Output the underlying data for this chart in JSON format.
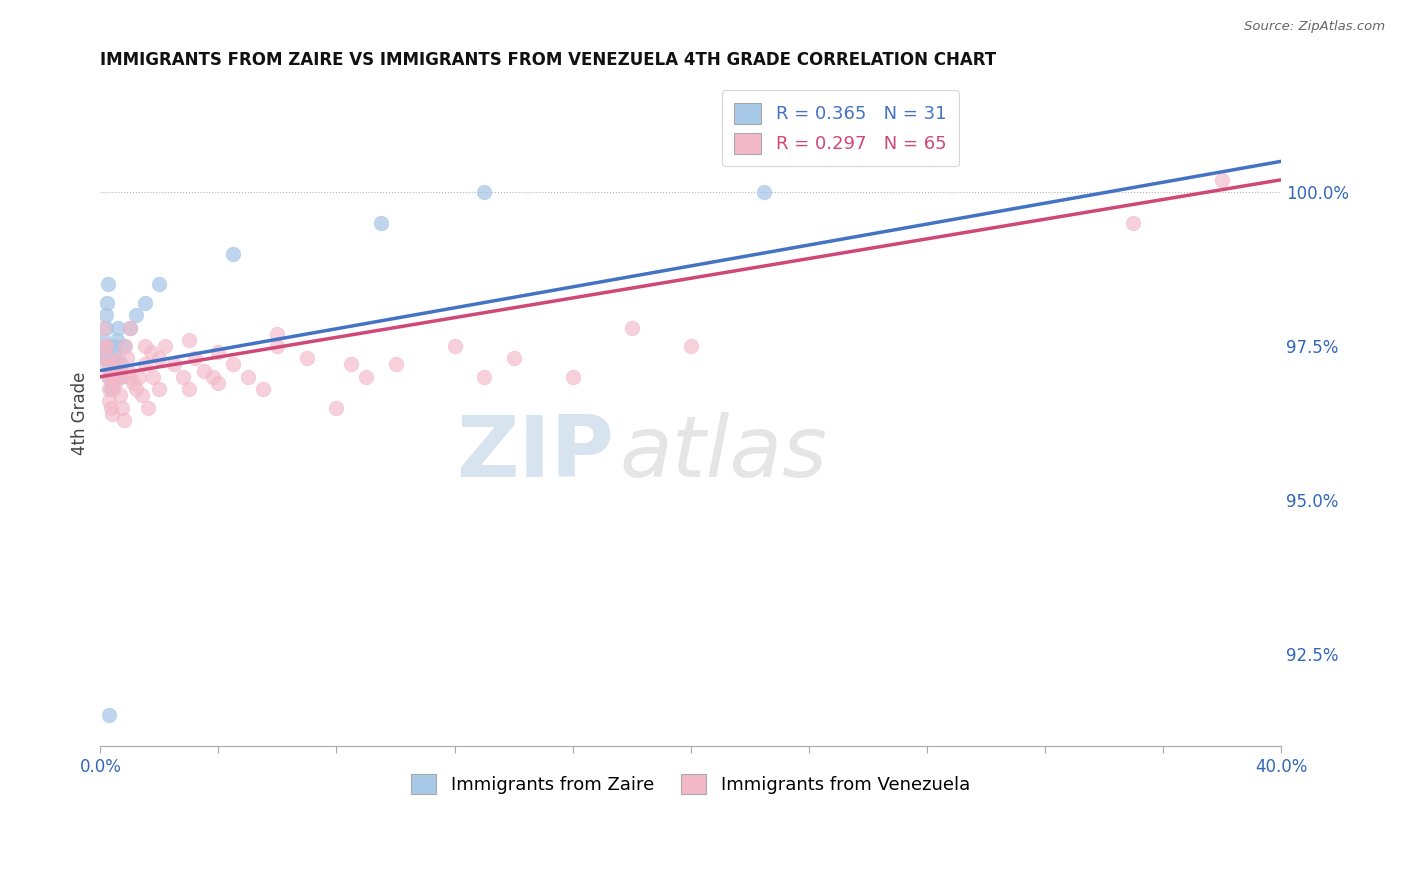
{
  "title": "IMMIGRANTS FROM ZAIRE VS IMMIGRANTS FROM VENEZUELA 4TH GRADE CORRELATION CHART",
  "source": "Source: ZipAtlas.com",
  "ylabel": "4th Grade",
  "xlim": [
    0.0,
    40.0
  ],
  "ylim": [
    91.0,
    101.8
  ],
  "yticks": [
    92.5,
    95.0,
    97.5,
    100.0
  ],
  "ytick_labels": [
    "92.5%",
    "95.0%",
    "97.5%",
    "100.0%"
  ],
  "zaire_color": "#a8c8e8",
  "venezuela_color": "#f2b8c8",
  "zaire_line_color": "#4472c4",
  "venezuela_line_color": "#d04878",
  "legend_zaire_label": "R = 0.365",
  "legend_zaire_n": "N = 31",
  "legend_venezuela_label": "R = 0.297",
  "legend_venezuela_n": "N = 65",
  "legend_bottom_zaire": "Immigrants from Zaire",
  "legend_bottom_venezuela": "Immigrants from Venezuela",
  "watermark_zip": "ZIP",
  "watermark_atlas": "atlas",
  "zaire_x": [
    0.08,
    0.1,
    0.12,
    0.15,
    0.18,
    0.2,
    0.22,
    0.25,
    0.28,
    0.3,
    0.35,
    0.38,
    0.4,
    0.42,
    0.45,
    0.48,
    0.5,
    0.55,
    0.6,
    0.65,
    0.7,
    0.8,
    1.0,
    1.2,
    1.5,
    2.0,
    4.5,
    9.5,
    13.0,
    22.5,
    0.3
  ],
  "zaire_y": [
    97.4,
    97.6,
    97.3,
    97.5,
    97.8,
    98.0,
    98.2,
    98.5,
    97.2,
    97.0,
    96.8,
    97.1,
    96.9,
    97.3,
    97.5,
    97.2,
    97.4,
    97.6,
    97.8,
    97.0,
    97.2,
    97.5,
    97.8,
    98.0,
    98.2,
    98.5,
    99.0,
    99.5,
    100.0,
    100.0,
    91.5
  ],
  "venezuela_x": [
    0.1,
    0.15,
    0.18,
    0.2,
    0.22,
    0.25,
    0.28,
    0.3,
    0.35,
    0.38,
    0.4,
    0.42,
    0.45,
    0.48,
    0.5,
    0.55,
    0.6,
    0.65,
    0.7,
    0.75,
    0.8,
    0.85,
    0.9,
    0.95,
    1.0,
    1.1,
    1.2,
    1.3,
    1.4,
    1.5,
    1.6,
    1.7,
    1.8,
    2.0,
    2.2,
    2.5,
    2.8,
    3.0,
    3.2,
    3.5,
    3.8,
    4.0,
    4.5,
    5.0,
    5.5,
    6.0,
    7.0,
    8.0,
    9.0,
    10.0,
    12.0,
    14.0,
    16.0,
    18.0,
    20.0,
    1.0,
    1.5,
    2.0,
    3.0,
    4.0,
    6.0,
    8.5,
    13.0,
    35.0,
    38.0
  ],
  "venezuela_y": [
    97.8,
    97.5,
    97.3,
    97.5,
    97.2,
    97.0,
    96.8,
    96.6,
    96.5,
    96.4,
    97.0,
    96.8,
    97.2,
    97.0,
    96.9,
    97.1,
    97.3,
    96.7,
    97.0,
    96.5,
    96.3,
    97.5,
    97.3,
    97.1,
    97.0,
    96.9,
    96.8,
    97.0,
    96.7,
    97.2,
    96.5,
    97.4,
    97.0,
    96.8,
    97.5,
    97.2,
    97.0,
    96.8,
    97.3,
    97.1,
    97.0,
    96.9,
    97.2,
    97.0,
    96.8,
    97.5,
    97.3,
    96.5,
    97.0,
    97.2,
    97.5,
    97.3,
    97.0,
    97.8,
    97.5,
    97.8,
    97.5,
    97.3,
    97.6,
    97.4,
    97.7,
    97.2,
    97.0,
    99.5,
    100.2
  ]
}
